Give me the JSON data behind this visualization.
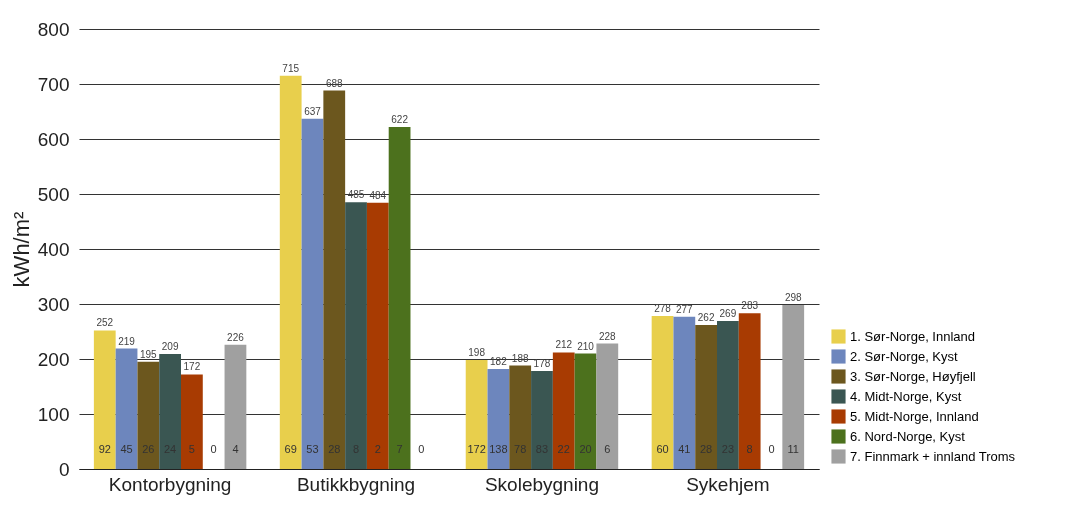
{
  "chart_data": {
    "type": "bar",
    "ylabel": "kWh/m²",
    "categories": [
      "Kontorbygning",
      "Butikkbygning",
      "Skolebygning",
      "Sykehjem"
    ],
    "series": [
      {
        "name": "1. Sør-Norge, Innland",
        "color": "#e8cf4c",
        "values": [
          252,
          715,
          198,
          278
        ]
      },
      {
        "name": "2. Sør-Norge, Kyst",
        "color": "#6d86bd",
        "values": [
          219,
          637,
          182,
          277
        ]
      },
      {
        "name": "3. Sør-Norge, Høyfjell",
        "color": "#6c571e",
        "values": [
          195,
          688,
          188,
          262
        ]
      },
      {
        "name": "4. Midt-Norge, Kyst",
        "color": "#3a5652",
        "values": [
          209,
          485,
          178,
          269
        ]
      },
      {
        "name": "5. Midt-Norge, Innland",
        "color": "#a83b02",
        "values": [
          172,
          484,
          212,
          283
        ]
      },
      {
        "name": "6. Nord-Norge, Kyst",
        "color": "#4c711d",
        "values": [
          null,
          622,
          210,
          null
        ]
      },
      {
        "name": "7. Finnmark + innland Troms",
        "color": "#a0a0a0",
        "values": [
          226,
          null,
          228,
          298
        ]
      }
    ],
    "ylim": [
      0,
      800
    ],
    "yticks": [
      0,
      100,
      200,
      300,
      400,
      500,
      600,
      700,
      800
    ],
    "grid": "y",
    "legend": "bottom right",
    "data_labels": true,
    "annotations": [
      "92",
      "45",
      "26",
      "24",
      "5",
      "0",
      "4",
      "69",
      "53",
      "28",
      "8",
      "2",
      "7",
      "0",
      "172",
      "138",
      "78",
      "83",
      "22",
      "20",
      "6",
      "60",
      "41",
      "28",
      "23",
      "8",
      "0",
      "11"
    ]
  }
}
